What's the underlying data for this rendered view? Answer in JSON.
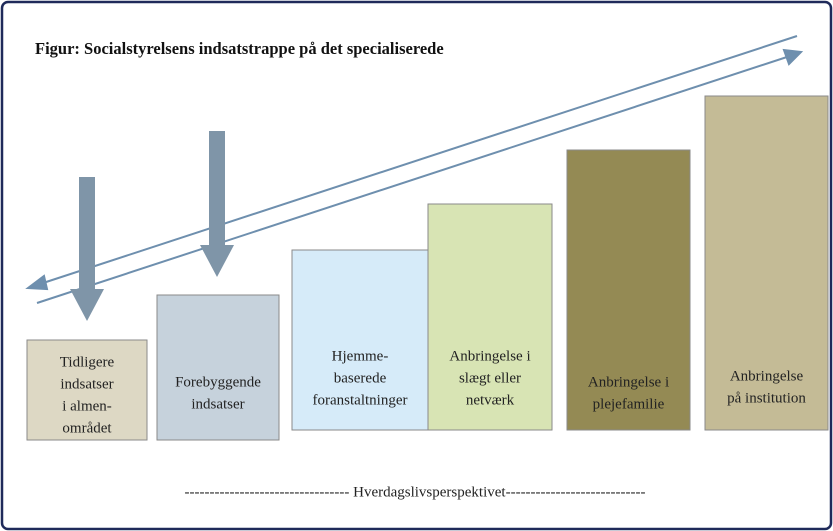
{
  "title": "Figur: Socialstyrelsens indsatstrappe på det specialiserede",
  "steps": [
    {
      "lines": [
        "Tidligere",
        "indsatser",
        "i almen-",
        "området"
      ]
    },
    {
      "lines": [
        "Forebyggende",
        "indsatser"
      ]
    },
    {
      "lines": [
        "Hjemme-",
        "baserede",
        "foranstaltninger"
      ]
    },
    {
      "lines": [
        "Anbringelse i",
        "slægt eller",
        "netværk"
      ]
    },
    {
      "lines": [
        "Anbringelse i",
        "plejefamilie"
      ]
    },
    {
      "lines": [
        "Anbringelse",
        "på institution"
      ]
    }
  ],
  "footer": "--------------------------------- Hverdagslivsperspektivet----------------------------"
}
